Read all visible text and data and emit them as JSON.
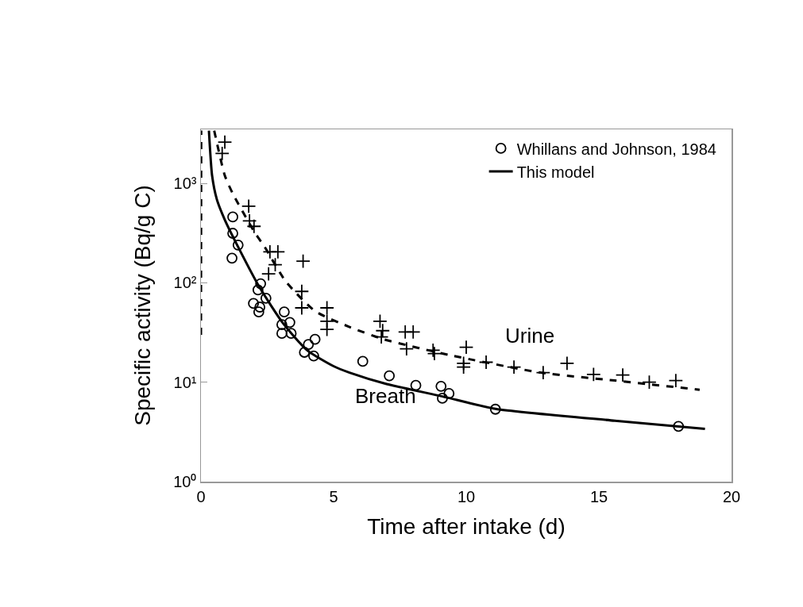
{
  "chart_data": {
    "type": "scatter",
    "xlabel": "Time after intake (d)",
    "ylabel": "Specific activity (Bq/g C)",
    "xlim": [
      0,
      20
    ],
    "xticks": [
      0,
      5,
      10,
      15,
      20
    ],
    "ylim": [
      1,
      3500
    ],
    "yticks": [
      {
        "value": 1,
        "label": "10⁰"
      },
      {
        "value": 10,
        "label": "10¹"
      },
      {
        "value": 100,
        "label": "10²"
      },
      {
        "value": 1000,
        "label": "10³"
      }
    ],
    "log": "y",
    "grid": false,
    "legend": "top right",
    "series": [
      {
        "name": "Whillans and Johnson, 1984",
        "marker": "circle",
        "color": "#000000",
        "x": [
          1.2,
          1.2,
          1.4,
          1.17,
          2.25,
          2.15,
          2.45,
          1.98,
          2.22,
          2.18,
          3.14,
          3.35,
          3.05,
          3.4,
          3.05,
          4.3,
          4.05,
          3.9,
          4.25,
          6.1,
          7.1,
          8.1,
          9.05,
          9.35,
          9.1,
          11.1,
          18.0
        ],
        "values": [
          460,
          315,
          240,
          177,
          98,
          85,
          70,
          62,
          57,
          51,
          51,
          40,
          38,
          31,
          31,
          27,
          24,
          20,
          18.4,
          16.2,
          11.6,
          9.3,
          9.1,
          7.7,
          6.9,
          5.35,
          3.6
        ]
      },
      {
        "marker": "cross",
        "color": "#000000",
        "x": [
          0.9,
          0.8,
          1.8,
          1.83,
          2.0,
          2.6,
          2.9,
          2.8,
          2.55,
          3.85,
          3.8,
          3.8,
          4.75,
          4.75,
          4.75,
          6.75,
          6.85,
          6.8,
          7.7,
          8.0,
          7.75,
          8.75,
          8.8,
          10.0,
          9.9,
          9.9,
          10.75,
          11.8,
          12.9,
          13.8,
          14.8,
          15.9,
          16.9,
          17.9
        ],
        "values": [
          2600,
          2000,
          590,
          420,
          370,
          205,
          205,
          152,
          123,
          165,
          82,
          56,
          56,
          41,
          34,
          41,
          33,
          28.6,
          32,
          32,
          21.7,
          21,
          19.4,
          22.5,
          15.5,
          14.2,
          15.9,
          14.2,
          12.5,
          15.5,
          12.0,
          11.8,
          10,
          10.4
        ]
      },
      {
        "name": "This model",
        "type": "line",
        "line_style": "solid",
        "marker": "none",
        "color": "#000000",
        "x": [
          0.3,
          0.42,
          0.6,
          0.9,
          1.4,
          2.2,
          3.1,
          4.0,
          5.0,
          5.6,
          7.0,
          9.1,
          11.1,
          15.6,
          19.0
        ],
        "values": [
          3400,
          1200,
          690,
          430,
          230,
          91,
          39,
          21,
          14.5,
          12.5,
          9.6,
          7.2,
          5.4,
          4.1,
          3.4
        ]
      },
      {
        "type": "line",
        "line_style": "dashed",
        "marker": "none",
        "color": "#000000",
        "x": [
          0,
          0.01,
          null,
          0.5,
          0.9,
          1.2,
          2.0,
          2.4,
          3.2,
          4.3,
          5.6,
          6.9,
          9.4,
          12.8,
          15.6,
          18.8
        ],
        "values": [
          30,
          3400,
          null,
          3400,
          1200,
          790,
          330,
          230,
          103,
          52,
          36,
          27,
          18.7,
          12.5,
          10.4,
          8.4
        ]
      }
    ],
    "annotations": [
      "Urine",
      "Breath"
    ]
  }
}
